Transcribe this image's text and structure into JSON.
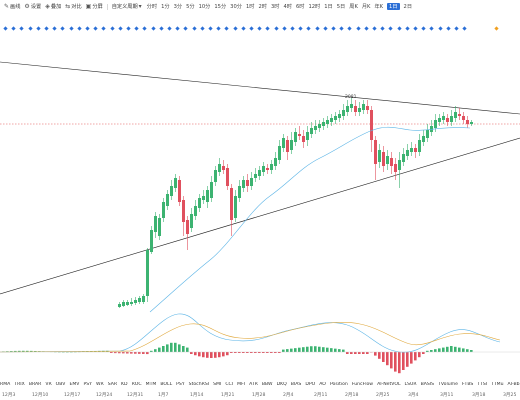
{
  "toolbar": {
    "draw_label": "画线",
    "settings_label": "设置",
    "overlay_label": "叠加",
    "compare_label": "对比",
    "split_label": "分屏",
    "custom_period_label": "自定义周期",
    "timeframes": [
      "分时",
      "1分",
      "3分",
      "5分",
      "10分",
      "15分",
      "30分",
      "1时",
      "2时",
      "3时",
      "4时",
      "6时",
      "12时",
      "1日",
      "5日",
      "周K",
      "月K",
      "年K",
      "1日",
      "2日"
    ],
    "active_timeframe_index": 18
  },
  "chart": {
    "price_label": "2081"
  },
  "indicators": [
    "RMA",
    "TRIX",
    "BRAR",
    "VR",
    "OBV",
    "EMV",
    "PSY",
    "WR",
    "SAR",
    "KD",
    "ROC",
    "MTM",
    "BOLL",
    "PSY",
    "StochRSI",
    "SMI",
    "CCI",
    "MFI",
    "ATR",
    "BBW",
    "DKQ",
    "BIAS",
    "DPO",
    "AO",
    "Position",
    "FuncFlow",
    "AI-NetVOL",
    "LSUR",
    "BASIS",
    "TVolume",
    "FTBS",
    "TTSI",
    "TTMu",
    "AI-Bb",
    "MLR",
    "AI-PD",
    "AI-PDX"
  ],
  "date_axis": [
    "12月3",
    "12月10",
    "12月17",
    "12月24",
    "12月31",
    "1月7",
    "1月14",
    "1月21",
    "1月28",
    "2月4",
    "2月11",
    "2月18",
    "2月25",
    "3月4",
    "3月11",
    "3月18",
    "3月25"
  ],
  "colors": {
    "up": "#3cb371",
    "down": "#e0505e",
    "ma": "#5bb4e6",
    "signal": "#e0a83c",
    "dashed": "#e04b4b",
    "diamond": "#2b6fd6",
    "diamond_accent": "#f0a020",
    "trendline": "#222222"
  },
  "icons": {
    "draw": "pencil-icon",
    "settings": "gear-icon",
    "overlay": "layers-icon",
    "compare": "compare-icon",
    "split": "split-screen-icon"
  }
}
